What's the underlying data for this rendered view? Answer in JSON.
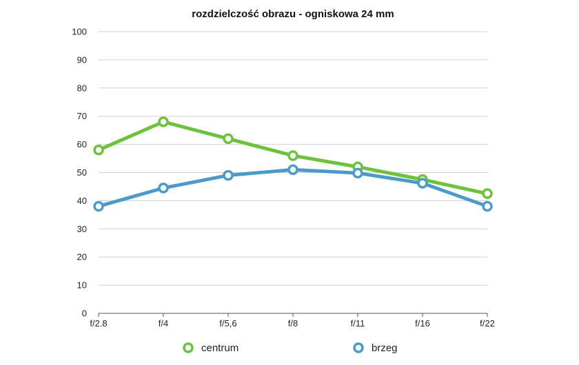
{
  "chart_data": {
    "type": "line",
    "title": "rozdzielczość obrazu - ogniskowa 24 mm",
    "xlabel": "",
    "ylabel": "",
    "categories": [
      "f/2.8",
      "f/4",
      "f/5,6",
      "f/8",
      "f/11",
      "f/16",
      "f/22"
    ],
    "ylim": [
      0,
      100
    ],
    "yticks": [
      0,
      10,
      20,
      30,
      40,
      50,
      60,
      70,
      80,
      90,
      100
    ],
    "grid": true,
    "legend_position": "bottom",
    "series": [
      {
        "name": "centrum",
        "color": "#6cc23a",
        "values": [
          58,
          68,
          62,
          56,
          52,
          47.5,
          42.5
        ]
      },
      {
        "name": "brzeg",
        "color": "#4a9cc8",
        "values": [
          38,
          44.5,
          49,
          51,
          49.8,
          46.2,
          38
        ]
      }
    ]
  }
}
